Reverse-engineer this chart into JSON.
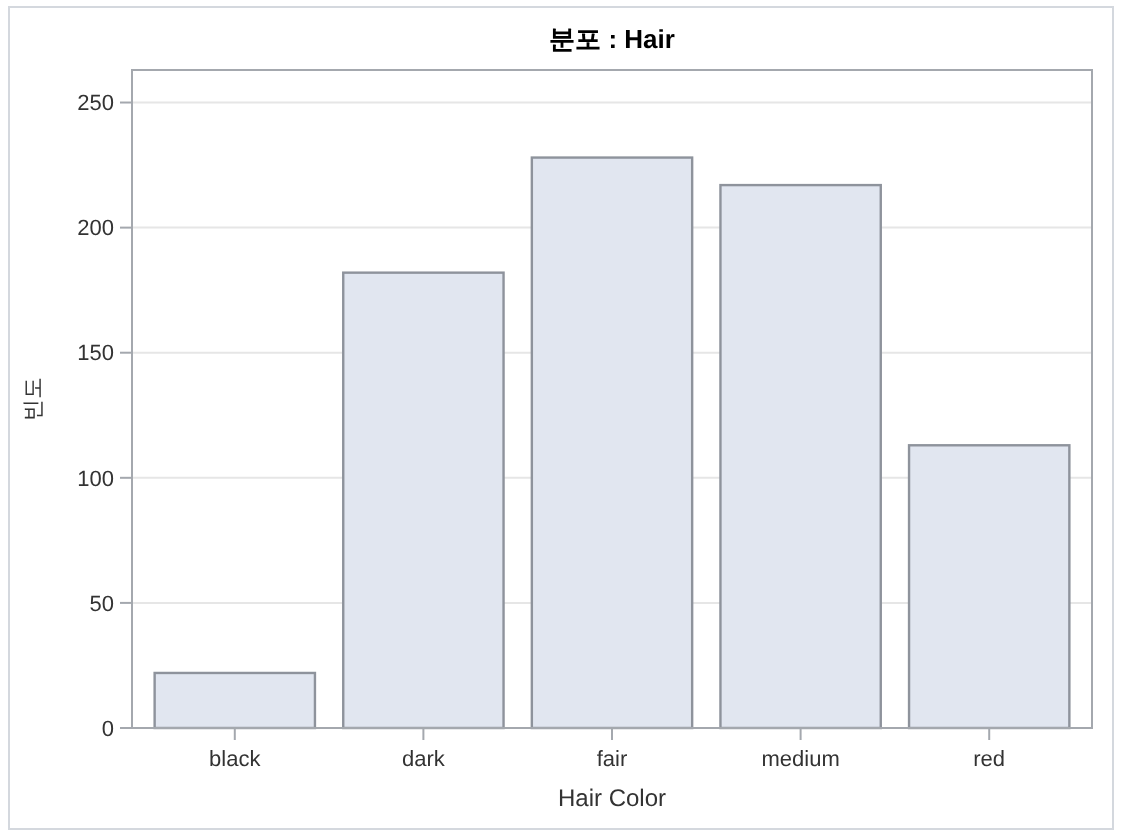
{
  "chart_data": {
    "type": "bar",
    "title": "분포 : Hair",
    "xlabel": "Hair Color",
    "ylabel": "빈도",
    "categories": [
      "black",
      "dark",
      "fair",
      "medium",
      "red"
    ],
    "values": [
      22,
      182,
      228,
      217,
      113
    ],
    "color": "#e1e6f0",
    "ylim": [
      0,
      263
    ],
    "yticks": [
      0,
      50,
      100,
      150,
      200,
      250
    ],
    "grid": "y"
  }
}
